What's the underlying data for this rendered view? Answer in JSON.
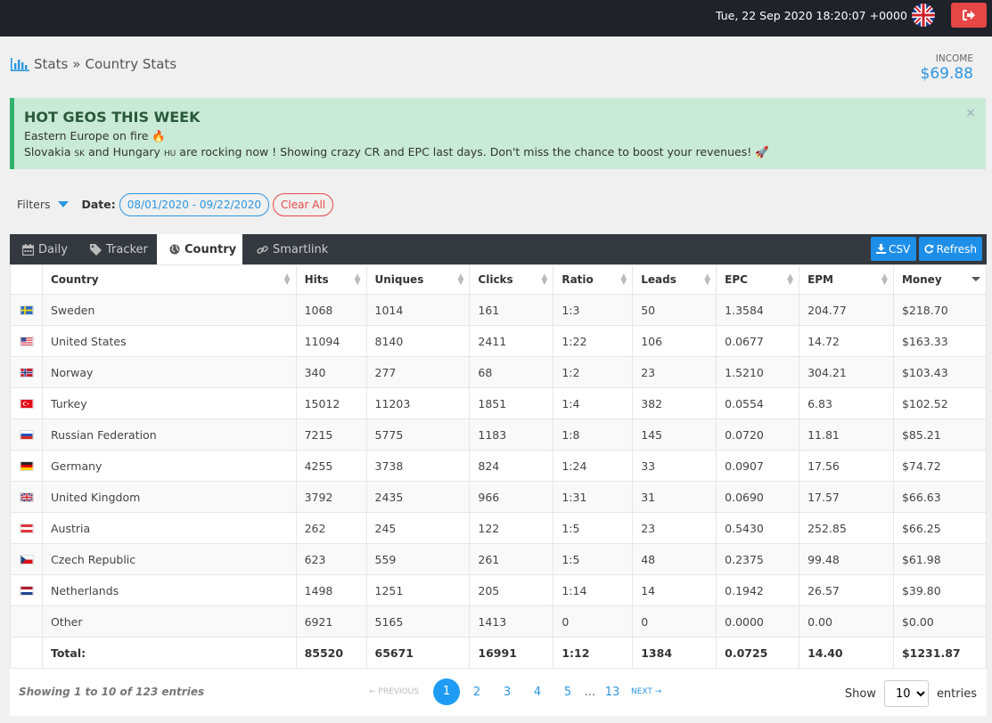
{
  "topbar": {
    "datetime": "Tue, 22 Sep 2020 18:20:07 +0000"
  },
  "breadcrumb": {
    "root": "Stats",
    "sep": "»",
    "current": "Country Stats"
  },
  "income": {
    "label": "INCOME",
    "value": "$69.88"
  },
  "alert": {
    "title": "HOT GEOS THIS WEEK",
    "line1": "Eastern Europe on fire 🔥",
    "line2_a": "Slovakia",
    "line2_sk": "SK",
    "line2_b": "and Hungary",
    "line2_hu": "HU",
    "line2_c": "are rocking now ! Showing crazy CR and EPC last days. Don't miss the chance to boost your revenues! 🚀",
    "close": "×"
  },
  "filters": {
    "label": "Filters",
    "date_label": "Date:",
    "date_range": "08/01/2020 - 09/22/2020",
    "clear": "Clear All"
  },
  "tabs": [
    {
      "label": "Daily",
      "icon": "calendar-icon"
    },
    {
      "label": "Tracker",
      "icon": "tag-icon"
    },
    {
      "label": "Country",
      "icon": "globe-icon"
    },
    {
      "label": "Smartlink",
      "icon": "link-icon"
    }
  ],
  "buttons": {
    "csv": "CSV",
    "refresh": "Refresh"
  },
  "table": {
    "headers": [
      "Country",
      "Hits",
      "Uniques",
      "Clicks",
      "Ratio",
      "Leads",
      "EPC",
      "EPM",
      "Money"
    ],
    "rows": [
      {
        "flag": "se",
        "country": "Sweden",
        "hits": "1068",
        "uniques": "1014",
        "clicks": "161",
        "ratio": "1:3",
        "leads": "50",
        "epc": "1.3584",
        "epm": "204.77",
        "money": "$218.70"
      },
      {
        "flag": "us",
        "country": "United States",
        "hits": "11094",
        "uniques": "8140",
        "clicks": "2411",
        "ratio": "1:22",
        "leads": "106",
        "epc": "0.0677",
        "epm": "14.72",
        "money": "$163.33"
      },
      {
        "flag": "no",
        "country": "Norway",
        "hits": "340",
        "uniques": "277",
        "clicks": "68",
        "ratio": "1:2",
        "leads": "23",
        "epc": "1.5210",
        "epm": "304.21",
        "money": "$103.43"
      },
      {
        "flag": "tr",
        "country": "Turkey",
        "hits": "15012",
        "uniques": "11203",
        "clicks": "1851",
        "ratio": "1:4",
        "leads": "382",
        "epc": "0.0554",
        "epm": "6.83",
        "money": "$102.52"
      },
      {
        "flag": "ru",
        "country": "Russian Federation",
        "hits": "7215",
        "uniques": "5775",
        "clicks": "1183",
        "ratio": "1:8",
        "leads": "145",
        "epc": "0.0720",
        "epm": "11.81",
        "money": "$85.21"
      },
      {
        "flag": "de",
        "country": "Germany",
        "hits": "4255",
        "uniques": "3738",
        "clicks": "824",
        "ratio": "1:24",
        "leads": "33",
        "epc": "0.0907",
        "epm": "17.56",
        "money": "$74.72"
      },
      {
        "flag": "gb",
        "country": "United Kingdom",
        "hits": "3792",
        "uniques": "2435",
        "clicks": "966",
        "ratio": "1:31",
        "leads": "31",
        "epc": "0.0690",
        "epm": "17.57",
        "money": "$66.63"
      },
      {
        "flag": "at",
        "country": "Austria",
        "hits": "262",
        "uniques": "245",
        "clicks": "122",
        "ratio": "1:5",
        "leads": "23",
        "epc": "0.5430",
        "epm": "252.85",
        "money": "$66.25"
      },
      {
        "flag": "cz",
        "country": "Czech Republic",
        "hits": "623",
        "uniques": "559",
        "clicks": "261",
        "ratio": "1:5",
        "leads": "48",
        "epc": "0.2375",
        "epm": "99.48",
        "money": "$61.98"
      },
      {
        "flag": "nl",
        "country": "Netherlands",
        "hits": "1498",
        "uniques": "1251",
        "clicks": "205",
        "ratio": "1:14",
        "leads": "14",
        "epc": "0.1942",
        "epm": "26.57",
        "money": "$39.80"
      },
      {
        "flag": "",
        "country": "Other",
        "hits": "6921",
        "uniques": "5165",
        "clicks": "1413",
        "ratio": "0",
        "leads": "0",
        "epc": "0.0000",
        "epm": "0.00",
        "money": "$0.00"
      }
    ],
    "total": {
      "label": "Total:",
      "hits": "85520",
      "uniques": "65671",
      "clicks": "16991",
      "ratio": "1:12",
      "leads": "1384",
      "epc": "0.0725",
      "epm": "14.40",
      "money": "$1231.87"
    }
  },
  "footer": {
    "info": "Showing 1 to 10 of 123 entries",
    "prev": "← PREVIOUS",
    "pages": [
      "1",
      "2",
      "3",
      "4",
      "5"
    ],
    "ellipsis": "...",
    "last": "13",
    "next": "NEXT →",
    "show": "Show",
    "page_size": "10",
    "entries": "entries"
  },
  "colors": {
    "accent": "#1e8fe8",
    "topbar": "#1f2329",
    "tabbar": "#33393f",
    "alert_bg": "#c8ead7",
    "danger": "#e74646"
  }
}
